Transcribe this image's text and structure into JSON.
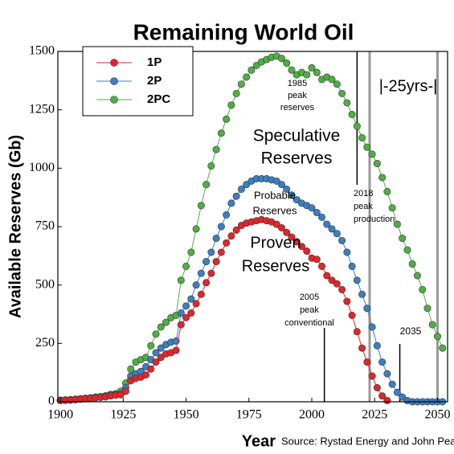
{
  "chart_data": {
    "type": "scatter-line",
    "title": "Remaining World Oil",
    "xlabel": "Year",
    "ylabel": "Available Reserves (Gb)",
    "source": "Source: Rystad Energy and John Peach",
    "xlim": [
      1899,
      2054
    ],
    "ylim": [
      0,
      1500
    ],
    "xticks": [
      1900,
      1925,
      1950,
      1975,
      2000,
      2025,
      2050
    ],
    "yticks": [
      0,
      250,
      500,
      750,
      1000,
      1250,
      1500
    ],
    "grid": false,
    "legend": "upper left",
    "x": [
      1900,
      1902,
      1904,
      1906,
      1908,
      1910,
      1912,
      1914,
      1916,
      1918,
      1920,
      1922,
      1924,
      1926,
      1928,
      1930,
      1932,
      1934,
      1936,
      1938,
      1940,
      1942,
      1944,
      1946,
      1948,
      1950,
      1952,
      1954,
      1956,
      1958,
      1960,
      1962,
      1964,
      1966,
      1968,
      1970,
      1972,
      1974,
      1976,
      1978,
      1980,
      1982,
      1984,
      1986,
      1988,
      1990,
      1992,
      1994,
      1996,
      1998,
      2000,
      2002,
      2004,
      2006,
      2008,
      2010,
      2012,
      2014,
      2016,
      2018,
      2020,
      2022,
      2024,
      2026,
      2028,
      2030,
      2032,
      2034,
      2036,
      2038,
      2040,
      2042,
      2044,
      2046,
      2048,
      2050,
      2052
    ],
    "series": [
      {
        "name": "1P",
        "color": "#e0262b",
        "values": [
          5,
          6,
          7,
          9,
          11,
          13,
          15,
          17,
          19,
          21,
          25,
          28,
          30,
          45,
          90,
          100,
          105,
          115,
          140,
          170,
          190,
          205,
          210,
          220,
          330,
          360,
          380,
          420,
          460,
          510,
          550,
          600,
          640,
          680,
          710,
          735,
          755,
          765,
          770,
          775,
          780,
          775,
          770,
          760,
          745,
          725,
          705,
          685,
          665,
          645,
          615,
          610,
          580,
          540,
          520,
          505,
          480,
          430,
          370,
          300,
          230,
          170,
          110,
          60,
          25,
          5,
          null,
          null,
          null,
          null,
          null,
          null,
          null,
          null,
          null,
          null,
          null
        ]
      },
      {
        "name": "2P",
        "color": "#3b7fc0",
        "values": [
          6,
          7,
          8,
          10,
          12,
          14,
          16,
          18,
          20,
          23,
          28,
          30,
          35,
          60,
          110,
          120,
          130,
          150,
          180,
          210,
          230,
          245,
          255,
          260,
          380,
          410,
          440,
          500,
          550,
          600,
          640,
          700,
          750,
          800,
          850,
          880,
          910,
          930,
          945,
          955,
          955,
          955,
          950,
          945,
          930,
          910,
          885,
          865,
          850,
          840,
          830,
          810,
          790,
          760,
          740,
          720,
          690,
          640,
          580,
          520,
          460,
          400,
          320,
          240,
          170,
          120,
          75,
          40,
          20,
          5,
          0,
          0,
          0,
          0,
          0,
          0,
          0
        ]
      },
      {
        "name": "2PC",
        "color": "#4fae44",
        "values": [
          7,
          8,
          9,
          11,
          13,
          15,
          17,
          20,
          22,
          26,
          32,
          35,
          45,
          80,
          140,
          170,
          180,
          190,
          240,
          290,
          320,
          340,
          360,
          370,
          520,
          580,
          640,
          740,
          840,
          930,
          1010,
          1080,
          1150,
          1210,
          1270,
          1320,
          1360,
          1390,
          1420,
          1440,
          1455,
          1465,
          1475,
          1480,
          1470,
          1450,
          1420,
          1400,
          1410,
          1400,
          1430,
          1410,
          1380,
          1390,
          1380,
          1360,
          1320,
          1280,
          1230,
          1180,
          1130,
          1090,
          1060,
          1020,
          960,
          900,
          830,
          760,
          700,
          650,
          590,
          540,
          480,
          400,
          330,
          280,
          230
        ]
      }
    ],
    "vlines": [
      {
        "x": 2018,
        "color": "#000000"
      },
      {
        "x": 2023,
        "color": "#999999"
      },
      {
        "x": 2005,
        "color": "#000000"
      },
      {
        "x": 2035,
        "color": "#000000"
      },
      {
        "x": 2050,
        "color": "#999999"
      }
    ],
    "annotations": [
      {
        "lines": [
          "1985",
          "peak",
          "reserves"
        ]
      },
      {
        "lines": [
          "Speculative",
          "Reserves"
        ]
      },
      {
        "lines": [
          "Probable",
          "Reserves"
        ]
      },
      {
        "lines": [
          "Proven",
          "Reserves"
        ]
      },
      {
        "lines": [
          "2005",
          "peak",
          "conventional"
        ]
      },
      {
        "lines": [
          "2018",
          "peak",
          "production"
        ]
      },
      {
        "lines": [
          "2035"
        ]
      },
      {
        "lines": [
          "|-25yrs-|"
        ]
      }
    ]
  }
}
